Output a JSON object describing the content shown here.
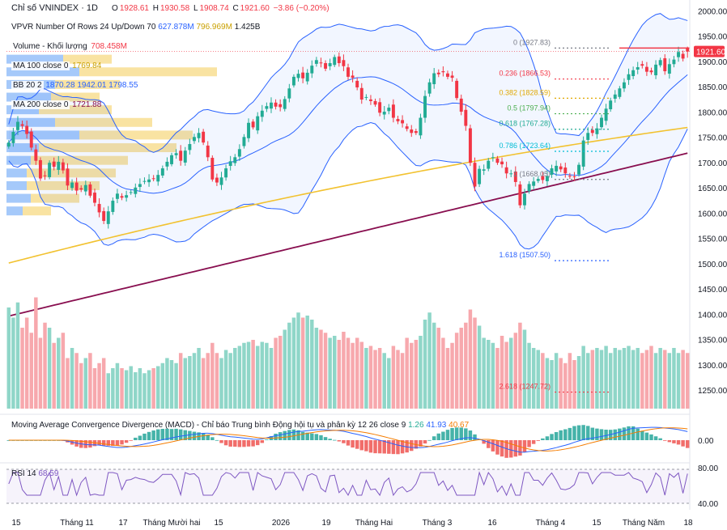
{
  "header": {
    "symbol": "Chỉ số VNINDEX · 1D",
    "open_label": "O",
    "open": "1928.61",
    "high_label": "H",
    "high": "1930.58",
    "low_label": "L",
    "low": "1908.74",
    "close_label": "C",
    "close": "1921.60",
    "change": "−3.86 (−0.20%)"
  },
  "indicators": {
    "vpvr_name": "VPVR Number Of Rows 24 Up/Down 70",
    "vpvr_up": "627.878M",
    "vpvr_down": "796.969M",
    "vpvr_total": "1.425B",
    "volume_name": "Volume - Khối lượng",
    "volume_value": "708.458M",
    "ma100_name": "MA 100 close 0",
    "ma100_value": "1769.84",
    "bb_name": "BB 20 2",
    "bb_basis": "1870.28",
    "bb_upper": "1942.01",
    "bb_lower": "1798.55",
    "ma200_name": "MA 200 close 0",
    "ma200_value": "1721.88",
    "macd_name": "Moving Average Convergence Divergence (MACD) - Chỉ báo Trung bình Động hội tụ và phân kỳ 12 26 close 9",
    "macd_hist": "1.26",
    "macd_line": "41.93",
    "macd_signal": "40.67",
    "rsi_name": "RSI 14",
    "rsi_value": "68.59"
  },
  "fib": [
    {
      "label": "0 (1927.83)",
      "value": 1927.83,
      "color": "#787b86"
    },
    {
      "label": "0.236 (1866.53)",
      "value": 1866.53,
      "color": "#f23645"
    },
    {
      "label": "0.382 (1828.59)",
      "value": 1828.59,
      "color": "#e0a800"
    },
    {
      "label": "0.5 (1797.94)",
      "value": 1797.94,
      "color": "#4caf50"
    },
    {
      "label": "0.618 (1767.28)",
      "value": 1767.28,
      "color": "#22ab94"
    },
    {
      "label": "0.786 (1723.64)",
      "value": 1723.64,
      "color": "#00bcd4"
    },
    {
      "label": "1 (1668.05)",
      "value": 1668.05,
      "color": "#787b86"
    },
    {
      "label": "1.618 (1507.50)",
      "value": 1507.5,
      "color": "#2962ff"
    },
    {
      "label": "2.618 (1247.72)",
      "value": 1247.72,
      "color": "#f23645"
    }
  ],
  "last_price_label": "1921.60",
  "price_axis": [
    "2000.00",
    "1950.00",
    "1900.00",
    "1850.00",
    "1800.00",
    "1750.00",
    "1700.00",
    "1650.00",
    "1600.00",
    "1550.00",
    "1500.00",
    "1450.00",
    "1400.00",
    "1350.00",
    "1300.00",
    "1250.00"
  ],
  "macd_axis": "0.00",
  "rsi_axis": [
    "80.00",
    "40.00"
  ],
  "time_axis": [
    "15",
    "Tháng 11",
    "17",
    "Tháng Mười hai",
    "15",
    "2026",
    "19",
    "Tháng Hai",
    "Tháng 3",
    "16",
    "Tháng 4",
    "15",
    "Tháng Năm",
    "18"
  ],
  "colors": {
    "up": "#22ab94",
    "down": "#f23645",
    "ma100": "#f2c230",
    "ma200": "#880e4f",
    "bb": "#2962ff",
    "rsi": "#7e57c2"
  },
  "chart_data": {
    "type": "candlestick",
    "symbol": "VNINDEX",
    "interval": "1D",
    "price_range": [
      1215,
      2010
    ],
    "close": [
      1741,
      1762,
      1782,
      1774,
      1758,
      1731,
      1705,
      1670,
      1675,
      1701,
      1693,
      1703,
      1686,
      1656,
      1662,
      1646,
      1648,
      1657,
      1636,
      1622,
      1603,
      1586,
      1605,
      1626,
      1640,
      1632,
      1637,
      1643,
      1652,
      1659,
      1665,
      1668,
      1670,
      1677,
      1690,
      1703,
      1716,
      1720,
      1705,
      1725,
      1738,
      1752,
      1760,
      1741,
      1712,
      1668,
      1662,
      1672,
      1690,
      1704,
      1712,
      1728,
      1752,
      1780,
      1771,
      1793,
      1804,
      1813,
      1820,
      1812,
      1811,
      1827,
      1848,
      1871,
      1877,
      1868,
      1879,
      1893,
      1904,
      1898,
      1887,
      1898,
      1910,
      1898,
      1892,
      1871,
      1869,
      1850,
      1826,
      1831,
      1823,
      1816,
      1800,
      1802,
      1810,
      1790,
      1783,
      1779,
      1768,
      1760,
      1760,
      1790,
      1833,
      1860,
      1878,
      1876,
      1880,
      1871,
      1869,
      1829,
      1802,
      1774,
      1701,
      1654,
      1689,
      1688,
      1705,
      1712,
      1701,
      1698,
      1680,
      1680,
      1663,
      1617,
      1640,
      1659,
      1664,
      1669,
      1667,
      1675,
      1690,
      1695,
      1688,
      1680,
      1674,
      1673,
      1697,
      1745,
      1760,
      1760,
      1769,
      1790,
      1808,
      1824,
      1836,
      1848,
      1860,
      1876,
      1884,
      1890,
      1893,
      1881,
      1880,
      1895,
      1904,
      1882,
      1896,
      1905,
      1920,
      1907,
      1921
    ],
    "volume": [
      1,
      0.9,
      1.05,
      0.8,
      0.9,
      0.75,
      1.1,
      0.7,
      0.85,
      0.8,
      0.65,
      0.7,
      0.75,
      0.5,
      0.6,
      0.55,
      0.45,
      0.5,
      0.55,
      0.4,
      0.45,
      0.5,
      0.35,
      0.4,
      0.45,
      0.4,
      0.38,
      0.42,
      0.36,
      0.4,
      0.35,
      0.38,
      0.4,
      0.42,
      0.45,
      0.5,
      0.48,
      0.45,
      0.55,
      0.5,
      0.52,
      0.55,
      0.6,
      0.5,
      0.55,
      0.65,
      0.55,
      0.5,
      0.58,
      0.55,
      0.6,
      0.62,
      0.65,
      0.66,
      0.68,
      0.62,
      0.66,
      0.65,
      0.6,
      0.7,
      0.72,
      0.78,
      0.85,
      0.9,
      0.95,
      0.9,
      0.92,
      0.88,
      0.8,
      0.78,
      0.75,
      0.7,
      0.72,
      0.68,
      0.76,
      0.7,
      0.65,
      0.7,
      0.66,
      0.6,
      0.62,
      0.58,
      0.6,
      0.55,
      0.5,
      0.62,
      0.58,
      0.55,
      0.7,
      0.65,
      0.68,
      0.72,
      0.88,
      0.95,
      0.85,
      0.8,
      0.7,
      0.6,
      0.65,
      0.75,
      0.8,
      0.85,
      0.98,
      0.9,
      0.82,
      0.7,
      0.68,
      0.65,
      0.6,
      0.72,
      0.66,
      0.7,
      0.75,
      0.85,
      0.78,
      0.65,
      0.6,
      0.58,
      0.55,
      0.5,
      0.48,
      0.55,
      0.5,
      0.45,
      0.55,
      0.48,
      0.52,
      0.62,
      0.55,
      0.58,
      0.6,
      0.58,
      0.62,
      0.55,
      0.6,
      0.58,
      0.6,
      0.62,
      0.58,
      0.6,
      0.55,
      0.58,
      0.62,
      0.55,
      0.6,
      0.58,
      0.55,
      0.6,
      0.55,
      0.58,
      0.55
    ]
  }
}
